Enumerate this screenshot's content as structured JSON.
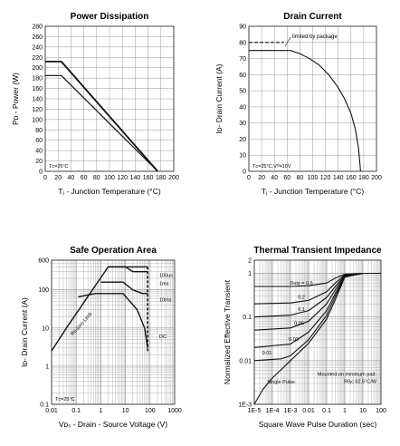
{
  "chart_data": [
    {
      "id": "power",
      "type": "line",
      "title": "Power Dissipation",
      "xlabel": "Tⱼ - Junction Temperature (°C)",
      "ylabel": "Pᴅ - Power (W)",
      "xlim": [
        0,
        200
      ],
      "ylim": [
        0,
        280
      ],
      "xticks": [
        0,
        20,
        40,
        60,
        80,
        100,
        120,
        140,
        160,
        180,
        200
      ],
      "yticks": [
        0,
        20,
        40,
        60,
        80,
        100,
        120,
        140,
        160,
        180,
        200,
        220,
        240,
        260,
        280
      ],
      "grid": true,
      "annotations": [
        "Tᴄ=25°C"
      ],
      "series": [
        {
          "points": [
            [
              0,
              212
            ],
            [
              25,
              212
            ],
            [
              175,
              0
            ]
          ],
          "width": 1.8
        },
        {
          "points": [
            [
              0,
              185
            ],
            [
              25,
              185
            ],
            [
              175,
              0
            ]
          ],
          "width": 1.2
        }
      ]
    },
    {
      "id": "drain",
      "type": "line",
      "title": "Drain Current",
      "xlabel": "Tⱼ - Junction Temperature (°C)",
      "ylabel": "Iᴅ- Drain Current (A)",
      "xlim": [
        0,
        200
      ],
      "ylim": [
        0,
        90
      ],
      "xticks": [
        0,
        20,
        40,
        60,
        80,
        100,
        120,
        140,
        160,
        180,
        200
      ],
      "yticks": [
        0,
        10,
        20,
        30,
        40,
        50,
        60,
        70,
        80,
        90
      ],
      "grid": true,
      "annotations": [
        "Tᴄ=25°C,Vᴳ=10V",
        "limited by package"
      ],
      "series": [
        {
          "points": [
            [
              0,
              80
            ],
            [
              55,
              80
            ]
          ],
          "dashed": true
        },
        {
          "points": [
            [
              0,
              75
            ],
            [
              65,
              75
            ],
            [
              80,
              73
            ],
            [
              95,
              70
            ],
            [
              110,
              66
            ],
            [
              125,
              60
            ],
            [
              140,
              52
            ],
            [
              150,
              45
            ],
            [
              160,
              36
            ],
            [
              167,
              26
            ],
            [
              172,
              14
            ],
            [
              174,
              5
            ],
            [
              175,
              0
            ]
          ]
        }
      ]
    },
    {
      "id": "soa",
      "type": "line",
      "title": "Safe Operation Area",
      "xlabel": "Vᴅₛ - Drain - Source Voltage (V)",
      "ylabel": "Iᴅ- Drain Current (A)",
      "xscale": "log",
      "yscale": "log",
      "xlim": [
        0.01,
        1000
      ],
      "ylim": [
        0.1,
        600
      ],
      "xticks": [
        0.01,
        0.1,
        1,
        10,
        100,
        1000
      ],
      "xticklabels": [
        "0.01",
        "0.1",
        "1",
        "10",
        "100",
        "1000"
      ],
      "yticks": [
        0.1,
        1,
        10,
        100,
        600
      ],
      "yticklabels": [
        "0.1",
        "1",
        "10",
        "100",
        "600"
      ],
      "grid": true,
      "annotations": [
        "Tᴄ=25°C",
        "Rᴅₛ(on) Limit"
      ],
      "labels": [
        "100us",
        "1ms",
        "10ms",
        "DC"
      ],
      "series": [
        {
          "name": "100us",
          "points": [
            [
              0.01,
              2.5
            ],
            [
              0.04,
              10
            ],
            [
              2,
              400
            ],
            [
              30,
              400
            ],
            [
              80,
              400
            ]
          ],
          "dashed_tail": true
        },
        {
          "name": "1ms",
          "points": [
            [
              2,
              400
            ],
            [
              10,
              400
            ],
            [
              20,
              300
            ],
            [
              50,
              300
            ],
            [
              80,
              300
            ]
          ]
        },
        {
          "name": "10ms",
          "points": [
            [
              1,
              160
            ],
            [
              8,
              160
            ],
            [
              20,
              100
            ],
            [
              50,
              80
            ],
            [
              80,
              80
            ]
          ]
        },
        {
          "name": "DC",
          "points": [
            [
              0.12,
              65
            ],
            [
              0.6,
              80
            ],
            [
              8,
              80
            ],
            [
              30,
              30
            ],
            [
              60,
              10
            ],
            [
              80,
              3
            ]
          ]
        }
      ]
    },
    {
      "id": "thermal",
      "type": "line",
      "title": "Thermal Transient Impedance",
      "xlabel": "Square Wave Pulse Duration (sec)",
      "ylabel": "Normalized Effective Transient",
      "xscale": "log",
      "yscale": "log",
      "xlim": [
        1e-05,
        100
      ],
      "ylim": [
        0.001,
        2
      ],
      "xticks": [
        1e-05,
        0.0001,
        0.001,
        0.01,
        0.1,
        1,
        10,
        100
      ],
      "xticklabels": [
        "1E-5",
        "1E-4",
        "1E-3",
        "0.01",
        "0.1",
        "1",
        "10",
        "100"
      ],
      "yticks": [
        0.001,
        0.01,
        0.1,
        1,
        2
      ],
      "yticklabels": [
        "1E-3",
        "0.01",
        "0.1",
        "1",
        "2"
      ],
      "grid": true,
      "annotations": [
        "Mounted on minimum pad.",
        "Rθⱼᴄ 62.5°C/W",
        "Single Pulse"
      ],
      "series": [
        {
          "name": "Duty = 0.5",
          "points": [
            [
              1e-05,
              0.5
            ],
            [
              0.001,
              0.5
            ],
            [
              0.01,
              0.52
            ],
            [
              0.1,
              0.6
            ],
            [
              0.3,
              0.78
            ],
            [
              1,
              0.95
            ],
            [
              10,
              1
            ],
            [
              100,
              1
            ]
          ]
        },
        {
          "name": "0.2",
          "points": [
            [
              1e-05,
              0.2
            ],
            [
              0.001,
              0.21
            ],
            [
              0.01,
              0.24
            ],
            [
              0.1,
              0.38
            ],
            [
              0.3,
              0.6
            ],
            [
              1,
              0.93
            ],
            [
              10,
              1
            ],
            [
              100,
              1
            ]
          ]
        },
        {
          "name": "0.1",
          "points": [
            [
              1e-05,
              0.1
            ],
            [
              0.001,
              0.11
            ],
            [
              0.01,
              0.14
            ],
            [
              0.1,
              0.28
            ],
            [
              0.3,
              0.5
            ],
            [
              1,
              0.9
            ],
            [
              10,
              1
            ],
            [
              100,
              1
            ]
          ]
        },
        {
          "name": "0.05",
          "points": [
            [
              1e-05,
              0.05
            ],
            [
              0.001,
              0.056
            ],
            [
              0.01,
              0.08
            ],
            [
              0.1,
              0.2
            ],
            [
              0.3,
              0.42
            ],
            [
              1,
              0.88
            ],
            [
              10,
              1
            ],
            [
              100,
              1
            ]
          ]
        },
        {
          "name": "0.02",
          "points": [
            [
              1e-05,
              0.02
            ],
            [
              0.001,
              0.024
            ],
            [
              0.01,
              0.045
            ],
            [
              0.1,
              0.14
            ],
            [
              0.3,
              0.35
            ],
            [
              1,
              0.86
            ],
            [
              10,
              1
            ],
            [
              100,
              1
            ]
          ]
        },
        {
          "name": "0.01",
          "points": [
            [
              1e-05,
              0.01
            ],
            [
              0.0003,
              0.011
            ],
            [
              0.001,
              0.013
            ],
            [
              0.01,
              0.03
            ],
            [
              0.1,
              0.11
            ],
            [
              0.3,
              0.3
            ],
            [
              1,
              0.85
            ],
            [
              10,
              1
            ],
            [
              100,
              1
            ]
          ]
        },
        {
          "name": "Single Pulse",
          "points": [
            [
              1e-05,
              0.001
            ],
            [
              3e-05,
              0.0022
            ],
            [
              0.0001,
              0.004
            ],
            [
              0.001,
              0.01
            ],
            [
              0.01,
              0.025
            ],
            [
              0.1,
              0.09
            ],
            [
              0.3,
              0.25
            ],
            [
              1,
              0.82
            ],
            [
              10,
              1
            ],
            [
              100,
              1
            ]
          ]
        }
      ]
    }
  ]
}
